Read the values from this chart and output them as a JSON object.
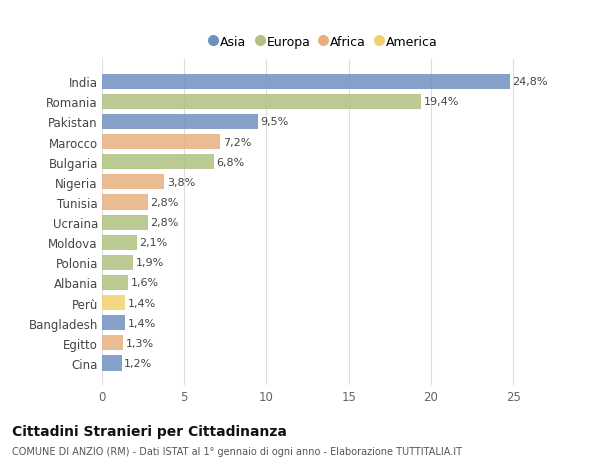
{
  "countries": [
    "India",
    "Romania",
    "Pakistan",
    "Marocco",
    "Bulgaria",
    "Nigeria",
    "Tunisia",
    "Ucraina",
    "Moldova",
    "Polonia",
    "Albania",
    "Perù",
    "Bangladesh",
    "Egitto",
    "Cina"
  ],
  "values": [
    24.8,
    19.4,
    9.5,
    7.2,
    6.8,
    3.8,
    2.8,
    2.8,
    2.1,
    1.9,
    1.6,
    1.4,
    1.4,
    1.3,
    1.2
  ],
  "labels": [
    "24,8%",
    "19,4%",
    "9,5%",
    "7,2%",
    "6,8%",
    "3,8%",
    "2,8%",
    "2,8%",
    "2,1%",
    "1,9%",
    "1,6%",
    "1,4%",
    "1,4%",
    "1,3%",
    "1,2%"
  ],
  "continents": [
    "Asia",
    "Europa",
    "Asia",
    "Africa",
    "Europa",
    "Africa",
    "Africa",
    "Europa",
    "Europa",
    "Europa",
    "Europa",
    "America",
    "Asia",
    "Africa",
    "Asia"
  ],
  "colors": {
    "Asia": "#7090c0",
    "Europa": "#b0c080",
    "Africa": "#e8b080",
    "America": "#f0d070"
  },
  "legend_order": [
    "Asia",
    "Europa",
    "Africa",
    "America"
  ],
  "title": "Cittadini Stranieri per Cittadinanza",
  "subtitle": "COMUNE DI ANZIO (RM) - Dati ISTAT al 1° gennaio di ogni anno - Elaborazione TUTTITALIA.IT",
  "bg_color": "#ffffff",
  "xlim": [
    0,
    27
  ],
  "xticks": [
    0,
    5,
    10,
    15,
    20,
    25
  ]
}
